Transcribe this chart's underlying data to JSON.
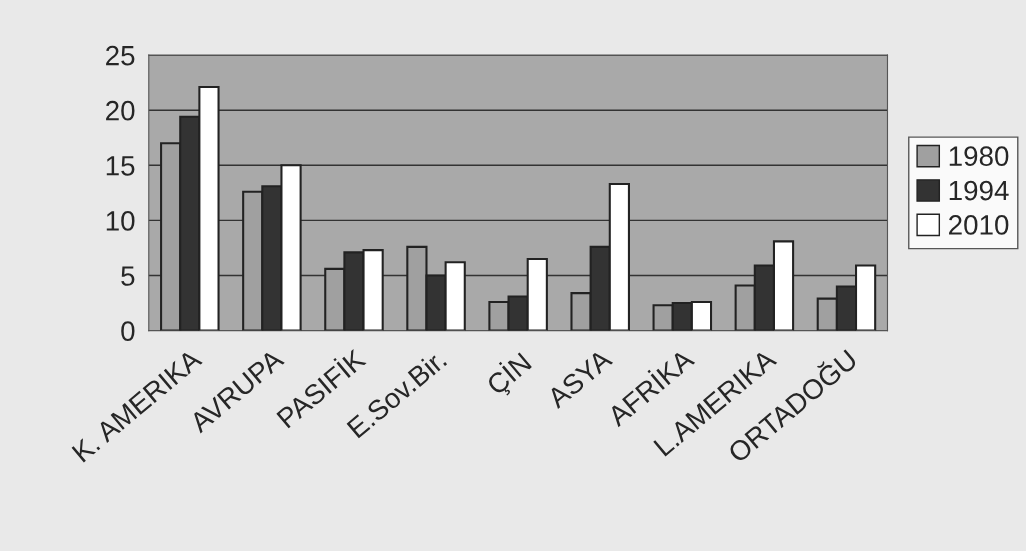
{
  "chart_data": {
    "type": "bar",
    "categories": [
      "K. AMERIKA",
      "AVRUPA",
      "PASIFİK",
      "E.Sov.Bir.",
      "ÇİN",
      "ASYA",
      "AFRİKA",
      "L.AMERIKA",
      "ORTADOĞU"
    ],
    "series": [
      {
        "name": "1980",
        "color": "#a0a0a0",
        "values": [
          17.0,
          12.6,
          5.6,
          7.6,
          2.6,
          3.4,
          2.3,
          4.1,
          2.9
        ]
      },
      {
        "name": "1994",
        "color": "#333333",
        "values": [
          19.4,
          13.1,
          7.1,
          5.0,
          3.1,
          7.6,
          2.5,
          5.9,
          4.0
        ]
      },
      {
        "name": "2010",
        "color": "#ffffff",
        "values": [
          22.1,
          15.0,
          7.3,
          6.2,
          6.5,
          13.3,
          2.6,
          8.1,
          5.9
        ]
      }
    ],
    "ylim": [
      0,
      25
    ],
    "yticks": [
      0,
      5,
      10,
      15,
      20,
      25
    ],
    "grid": "y",
    "legend": "right"
  }
}
